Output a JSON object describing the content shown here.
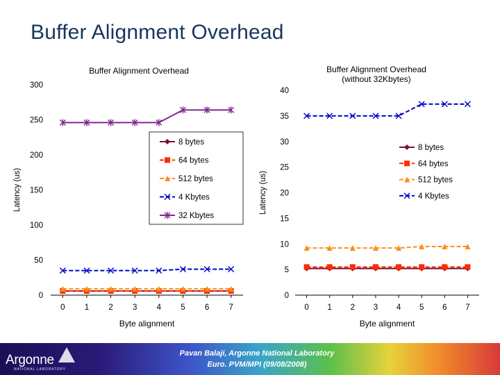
{
  "slide": {
    "title": "Buffer Alignment Overhead",
    "footer_line1": "Pavan Balaji, Argonne National Laboratory",
    "footer_line2": "Euro. PVM/MPI (09/08/2008)",
    "logo_text": "Argonne",
    "logo_sub": "NATIONAL LABORATORY"
  },
  "chart_data": [
    {
      "type": "line",
      "title": "Buffer Alignment Overhead",
      "xlabel": "Byte alignment",
      "ylabel": "Latency (us)",
      "x": [
        0,
        1,
        2,
        3,
        4,
        5,
        6,
        7
      ],
      "xlim": [
        -0.5,
        7.5
      ],
      "ylim": [
        0,
        300
      ],
      "yticks": [
        0,
        50,
        100,
        150,
        200,
        250,
        300
      ],
      "xticks": [
        0,
        1,
        2,
        3,
        4,
        5,
        6,
        7
      ],
      "grid": false,
      "legend": "center",
      "series": [
        {
          "name": "8 bytes",
          "values": [
            6,
            6,
            6,
            6,
            6,
            6,
            6,
            6
          ],
          "color": "#7b1030",
          "marker": "diamond",
          "dash": ""
        },
        {
          "name": "64 bytes",
          "values": [
            6,
            6,
            6,
            6,
            6,
            6,
            6,
            6
          ],
          "color": "#ff2a00",
          "marker": "square",
          "dash": "6,3"
        },
        {
          "name": "512 bytes",
          "values": [
            9,
            9,
            9,
            9,
            9,
            9,
            9,
            9
          ],
          "color": "#ff8c1a",
          "marker": "triangle",
          "dash": "6,3"
        },
        {
          "name": "4 Kbytes",
          "values": [
            35,
            35,
            35,
            35,
            35,
            37,
            37,
            37
          ],
          "color": "#0000cc",
          "marker": "x",
          "dash": "6,3"
        },
        {
          "name": "32 Kbytes",
          "values": [
            246,
            246,
            246,
            246,
            246,
            264,
            264,
            264
          ],
          "color": "#7f2a8c",
          "marker": "star",
          "dash": ""
        }
      ]
    },
    {
      "type": "line",
      "title": "Buffer Alignment Overhead\n(without 32Kbytes)",
      "xlabel": "Byte alignment",
      "ylabel": "Latency (us)",
      "x": [
        0,
        1,
        2,
        3,
        4,
        5,
        6,
        7
      ],
      "xlim": [
        -0.5,
        7.5
      ],
      "ylim": [
        0,
        40
      ],
      "yticks": [
        0,
        5,
        10,
        15,
        20,
        25,
        30,
        35,
        40
      ],
      "xticks": [
        0,
        1,
        2,
        3,
        4,
        5,
        6,
        7
      ],
      "grid": false,
      "legend": "right",
      "series": [
        {
          "name": "8 bytes",
          "values": [
            5.2,
            5.2,
            5.2,
            5.2,
            5.2,
            5.2,
            5.2,
            5.2
          ],
          "color": "#7b1030",
          "marker": "diamond",
          "dash": ""
        },
        {
          "name": "64 bytes",
          "values": [
            5.5,
            5.5,
            5.5,
            5.5,
            5.5,
            5.5,
            5.5,
            5.5
          ],
          "color": "#ff2a00",
          "marker": "square",
          "dash": "6,3"
        },
        {
          "name": "512 bytes",
          "values": [
            9.2,
            9.2,
            9.2,
            9.2,
            9.2,
            9.5,
            9.5,
            9.5
          ],
          "color": "#ff8c1a",
          "marker": "triangle",
          "dash": "6,3"
        },
        {
          "name": "4 Kbytes",
          "values": [
            35,
            35,
            35,
            35,
            35,
            37.3,
            37.3,
            37.3
          ],
          "color": "#0000cc",
          "marker": "x",
          "dash": "6,3"
        }
      ]
    }
  ]
}
